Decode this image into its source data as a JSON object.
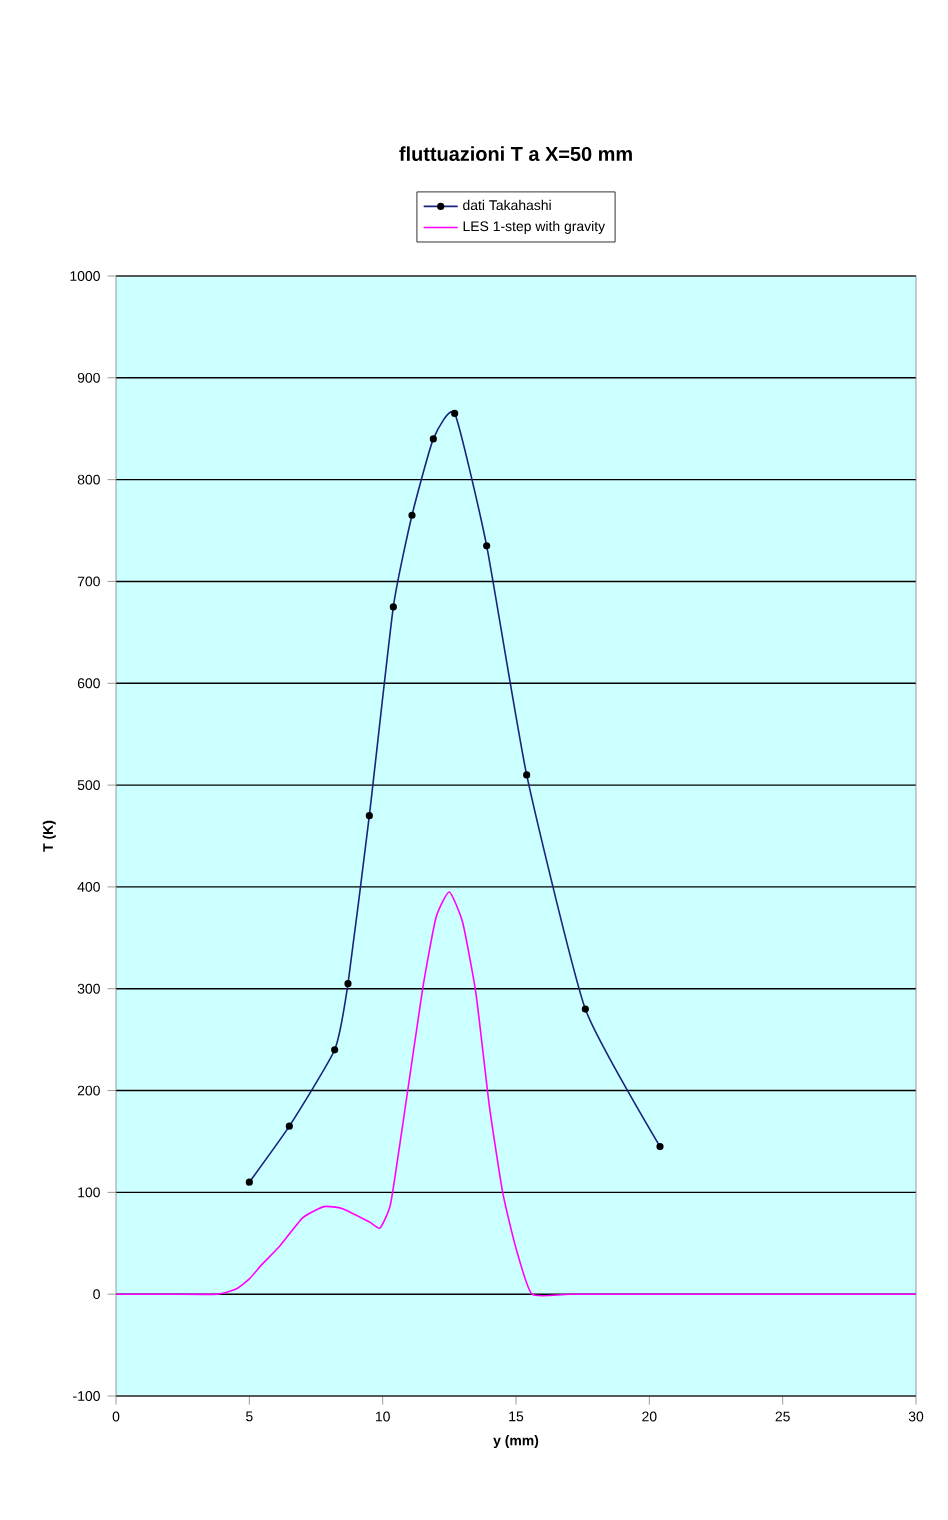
{
  "chart_data": {
    "type": "line",
    "title": "fluttuazioni T a X=50 mm",
    "xlabel": "y (mm)",
    "ylabel": "T (K)",
    "xlim": [
      0,
      30
    ],
    "xticks": [
      0,
      5,
      10,
      15,
      20,
      25,
      30
    ],
    "ylim": [
      -100,
      1000
    ],
    "yticks": [
      -100,
      0,
      100,
      200,
      300,
      400,
      500,
      600,
      700,
      800,
      900,
      1000
    ],
    "grid": "y",
    "legend": "top",
    "series": [
      {
        "name": "dati Takahashi",
        "color": "#1a237e",
        "marker": "circle",
        "x": [
          5.0,
          6.5,
          8.2,
          8.7,
          9.5,
          10.4,
          11.1,
          11.9,
          12.7,
          13.9,
          15.4,
          17.6,
          20.4
        ],
        "values": [
          110,
          165,
          240,
          305,
          470,
          675,
          765,
          840,
          865,
          735,
          510,
          280,
          145
        ]
      },
      {
        "name": "LES 1-step with gravity",
        "color": "#ff00ff",
        "marker": "none",
        "x": [
          0,
          2,
          3.8,
          4.5,
          5,
          5.5,
          6.1,
          7,
          7.8,
          8.5,
          9.5,
          9.9,
          10.3,
          10.8,
          11.5,
          12,
          12.5,
          13,
          13.5,
          14,
          14.5,
          15,
          15.6,
          17,
          20,
          25,
          30
        ],
        "values": [
          0,
          0,
          0,
          5,
          15,
          30,
          46,
          75,
          86,
          84,
          71,
          65,
          89,
          175,
          300,
          370,
          395,
          365,
          295,
          185,
          100,
          45,
          0,
          0,
          0,
          0,
          0
        ]
      }
    ]
  }
}
